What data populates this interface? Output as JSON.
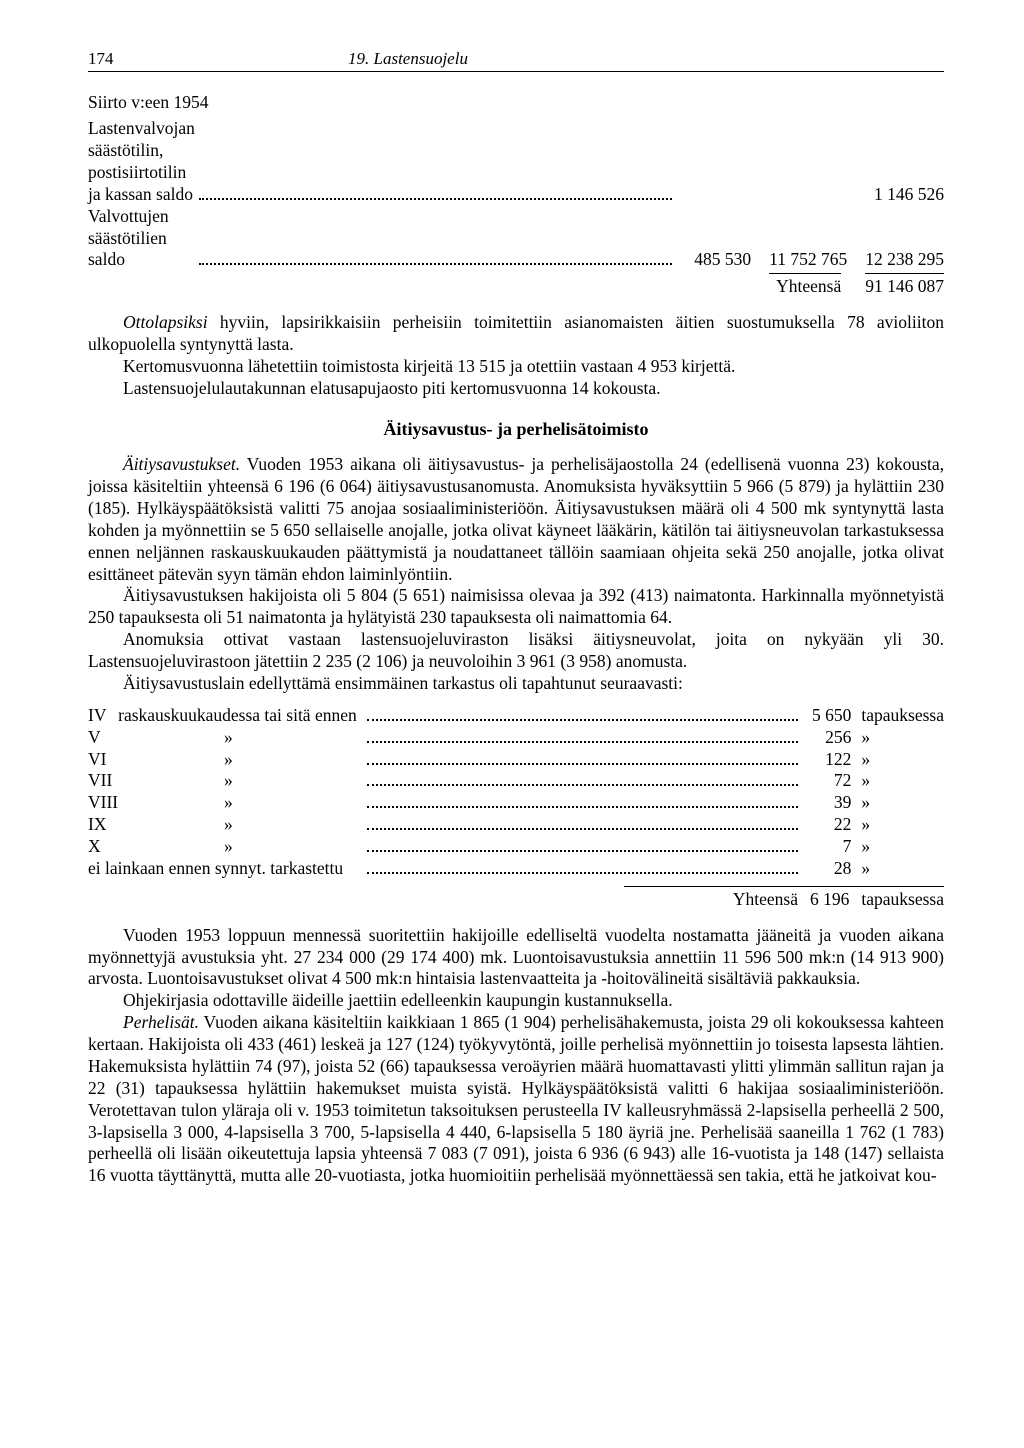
{
  "page_number": "174",
  "running_title": "19. Lastensuojelu",
  "siirto_line": "Siirto v:een 1954",
  "top_rows": [
    {
      "desc": "Lastenvalvojan säästötilin, postisiirtotilin ja kassan saldo",
      "c1": "",
      "c2": "",
      "c3": "1 146 526"
    },
    {
      "desc": "Valvottujen säästötilien saldo",
      "c1": "485 530",
      "c2": "11 752 765",
      "c3": "12 238 295"
    }
  ],
  "top_total_label": "Yhteensä",
  "top_total_value": "91 146 087",
  "para1": "Ottolapsiksi hyviin, lapsirikkaisiin perheisiin toimitettiin asianomaisten äitien suostumuksella 78 avioliiton ulkopuolella syntynyttä lasta.",
  "para1_lead": "Ottolapsiksi",
  "para1_rest": " hyviin, lapsirikkaisiin perheisiin toimitettiin asianomaisten äitien suostumuksella 78 avioliiton ulkopuolella syntynyttä lasta.",
  "para2": "Kertomusvuonna lähetettiin toimistosta kirjeitä 13 515 ja otettiin vastaan 4 953 kirjettä.",
  "para3": "Lastensuojelulautakunnan elatusapujaosto piti kertomusvuonna 14 kokousta.",
  "heading2": "Äitiysavustus- ja perhelisätoimisto",
  "para4_lead": "Äitiysavustukset.",
  "para4": " Vuoden 1953 aikana oli äitiysavustus- ja perhelisäjaostolla 24 (edellisenä vuonna 23) kokousta, joissa käsiteltiin yhteensä 6 196 (6 064) äitiysavustusanomusta. Anomuksista hyväksyttiin 5 966 (5 879) ja hylättiin 230 (185). Hylkäyspäätöksistä valitti 75 anojaa sosiaaliministeriöön. Äitiysavustuksen määrä oli 4 500 mk syntynyttä lasta kohden ja myönnettiin se 5 650 sellaiselle anojalle, jotka olivat käyneet lääkärin, kätilön tai äitiysneuvolan tarkastuksessa ennen neljännen raskauskuukauden päättymistä ja noudattaneet tällöin saamiaan ohjeita sekä 250 anojalle, jotka olivat esittäneet pätevän syyn tämän ehdon laiminlyöntiin.",
  "para5": "Äitiysavustuksen hakijoista oli 5 804 (5 651) naimisissa olevaa ja 392 (413) naimatonta. Harkinnalla myönnetyistä 250 tapauksesta oli 51 naimatonta ja hylätyistä 230 tapauksesta oli naimattomia 64.",
  "para6": "Anomuksia ottivat vastaan lastensuojeluviraston lisäksi äitiysneuvolat, joita on nykyään yli 30. Lastensuojeluvirastoon jätettiin 2 235 (2 106) ja neuvoloihin 3 961 (3 958) anomusta.",
  "para7": "Äitiysavustuslain edellyttämä ensimmäinen tarkastus oli tapahtunut seuraavasti:",
  "mid_rows": [
    {
      "roman": "IV",
      "word": "raskauskuukaudessa tai sitä ennen",
      "val": "5 650",
      "unit": "tapauksessa"
    },
    {
      "roman": "V",
      "word": "»",
      "val": "256",
      "unit": "»"
    },
    {
      "roman": "VI",
      "word": "»",
      "val": "122",
      "unit": "»"
    },
    {
      "roman": "VII",
      "word": "»",
      "val": "72",
      "unit": "»"
    },
    {
      "roman": "VIII",
      "word": "»",
      "val": "39",
      "unit": "»"
    },
    {
      "roman": "IX",
      "word": "»",
      "val": "22",
      "unit": "»"
    },
    {
      "roman": "X",
      "word": "»",
      "val": "7",
      "unit": "»"
    },
    {
      "roman": "",
      "word": "ei lainkaan ennen synnyt. tarkastettu",
      "val": "28",
      "unit": "»"
    }
  ],
  "mid_total_label": "Yhteensä",
  "mid_total_value": "6 196",
  "mid_total_unit": "tapauksessa",
  "para8": "Vuoden 1953 loppuun mennessä suoritettiin hakijoille edelliseltä vuodelta nostamatta jääneitä ja vuoden aikana myönnettyjä avustuksia yht. 27 234 000 (29 174 400) mk. Luontoisavustuksia annettiin 11 596 500 mk:n (14 913 900) arvosta. Luontoisavustukset olivat 4 500 mk:n hintaisia lastenvaatteita ja -hoitovälineitä sisältäviä pakkauksia.",
  "para9": "Ohjekirjasia odottaville äideille jaettiin edelleenkin kaupungin kustannuksella.",
  "para10_lead": "Perhelisät.",
  "para10": " Vuoden aikana käsiteltiin kaikkiaan 1 865 (1 904) perhelisähakemusta, joista 29 oli kokouksessa kahteen kertaan. Hakijoista oli 433 (461) leskeä ja 127 (124) työkyvytöntä, joille perhelisä myönnettiin jo toisesta lapsesta lähtien. Hakemuksista hylättiin 74 (97), joista 52 (66) tapauksessa veroäyrien määrä huomattavasti ylitti ylimmän sallitun rajan ja 22 (31) tapauksessa hylättiin hakemukset muista syistä. Hylkäyspäätöksistä valitti 6 hakijaa sosiaaliministeriöön. Verotettavan tulon yläraja oli v. 1953 toimitetun taksoituksen perusteella IV kalleusryhmässä 2-lapsisella perheellä 2 500, 3-lapsisella 3 000, 4-lapsisella 3 700, 5-lapsisella 4 440, 6-lapsisella 5 180 äyriä jne. Perhelisää saaneilla 1 762 (1 783) perheellä oli lisään oikeutettuja lapsia yhteensä 7 083 (7 091), joista 6 936 (6 943) alle 16-vuotista ja 148 (147) sellaista 16 vuotta täyttänyttä, mutta alle 20-vuotiasta, jotka huomioitiin perhelisää myönnettäessä sen takia, että he jatkoivat kou-"
}
